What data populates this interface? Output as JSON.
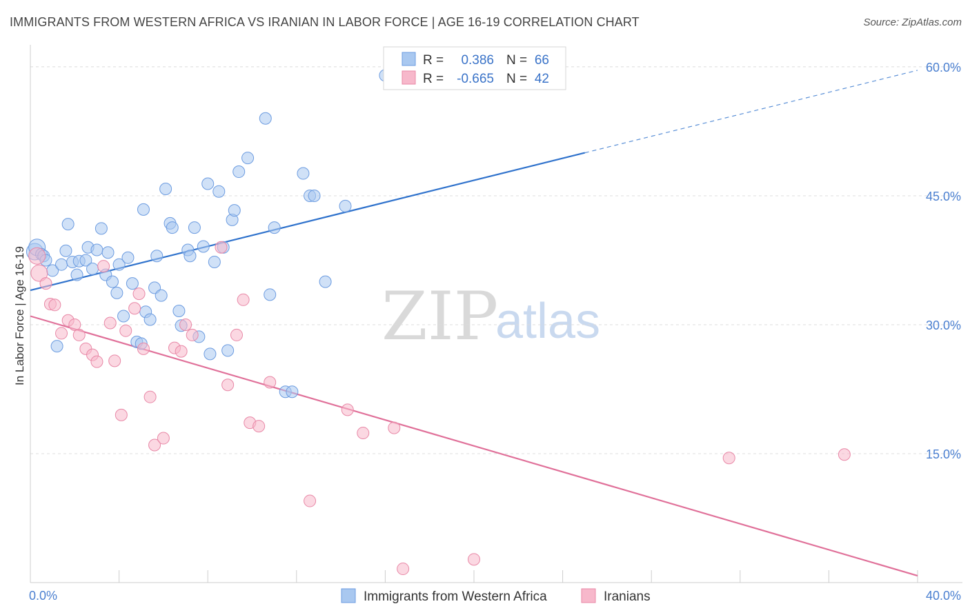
{
  "title": "IMMIGRANTS FROM WESTERN AFRICA VS IRANIAN IN LABOR FORCE | AGE 16-19 CORRELATION CHART",
  "source": "Source: ZipAtlas.com",
  "watermark": {
    "zip": "ZIP",
    "atlas": "atlas"
  },
  "legend": {
    "r_label": "R =",
    "n_label": "N =",
    "rows": [
      {
        "r": "0.386",
        "n": "66",
        "color": "#a9c8f0",
        "stroke": "#6b9be0"
      },
      {
        "r": "-0.665",
        "n": "42",
        "color": "#f7b8cb",
        "stroke": "#e887a6"
      }
    ]
  },
  "chart_data": {
    "type": "scatter",
    "xlabel": "",
    "ylabel": "In Labor Force | Age 16-19",
    "xlim": [
      0,
      40
    ],
    "ylim": [
      0,
      62
    ],
    "x_tick_labels": [
      {
        "v": 0,
        "label": "0.0%"
      },
      {
        "v": 40,
        "label": "40.0%"
      }
    ],
    "y_tick_labels": [
      {
        "v": 15,
        "label": "15.0%"
      },
      {
        "v": 30,
        "label": "30.0%"
      },
      {
        "v": 45,
        "label": "45.0%"
      },
      {
        "v": 60,
        "label": "60.0%"
      }
    ],
    "grid": "horizontal dashed",
    "legend_position": "bottom",
    "series": [
      {
        "name": "Immigrants from Western Africa",
        "color": "#a9c8f0",
        "stroke": "#6b9be0",
        "trend": {
          "x0": 0,
          "y0": 34.0,
          "x1": 25,
          "y1": 50.0,
          "dash_to_x": 40,
          "dash_to_y": 59.6,
          "color": "#2f72cc"
        },
        "points": [
          [
            0.2,
            38.5
          ],
          [
            0.3,
            39.0
          ],
          [
            0.5,
            38.2
          ],
          [
            0.6,
            38.0
          ],
          [
            0.7,
            37.5
          ],
          [
            1.0,
            36.3
          ],
          [
            1.2,
            27.5
          ],
          [
            1.4,
            37.0
          ],
          [
            1.6,
            38.6
          ],
          [
            1.7,
            41.7
          ],
          [
            1.9,
            37.3
          ],
          [
            2.1,
            35.8
          ],
          [
            2.2,
            37.4
          ],
          [
            2.5,
            37.5
          ],
          [
            2.6,
            39.0
          ],
          [
            2.8,
            36.5
          ],
          [
            3.0,
            38.7
          ],
          [
            3.2,
            41.2
          ],
          [
            3.4,
            35.8
          ],
          [
            3.5,
            38.4
          ],
          [
            3.7,
            35.0
          ],
          [
            3.9,
            33.7
          ],
          [
            4.0,
            37.0
          ],
          [
            4.2,
            31.0
          ],
          [
            4.4,
            37.8
          ],
          [
            4.6,
            34.8
          ],
          [
            4.8,
            28.0
          ],
          [
            5.0,
            27.8
          ],
          [
            5.1,
            43.4
          ],
          [
            5.2,
            31.5
          ],
          [
            5.4,
            30.6
          ],
          [
            5.6,
            34.3
          ],
          [
            5.7,
            38.0
          ],
          [
            5.9,
            33.4
          ],
          [
            6.1,
            45.8
          ],
          [
            6.3,
            41.8
          ],
          [
            6.4,
            41.3
          ],
          [
            6.7,
            31.6
          ],
          [
            6.8,
            29.9
          ],
          [
            7.1,
            38.7
          ],
          [
            7.2,
            38.0
          ],
          [
            7.4,
            41.3
          ],
          [
            7.6,
            28.6
          ],
          [
            7.8,
            39.1
          ],
          [
            8.0,
            46.4
          ],
          [
            8.1,
            26.6
          ],
          [
            8.3,
            37.3
          ],
          [
            8.5,
            45.5
          ],
          [
            8.7,
            39.0
          ],
          [
            8.9,
            27.0
          ],
          [
            9.1,
            42.2
          ],
          [
            9.2,
            43.3
          ],
          [
            9.4,
            47.8
          ],
          [
            9.8,
            49.4
          ],
          [
            10.6,
            54.0
          ],
          [
            10.8,
            33.5
          ],
          [
            11.0,
            41.3
          ],
          [
            11.5,
            22.2
          ],
          [
            11.8,
            22.2
          ],
          [
            12.3,
            47.6
          ],
          [
            12.6,
            45.0
          ],
          [
            12.8,
            45.0
          ],
          [
            13.3,
            35.0
          ],
          [
            14.2,
            43.8
          ],
          [
            16.0,
            59.0
          ],
          [
            16.4,
            58.7
          ]
        ]
      },
      {
        "name": "Iranians",
        "color": "#f7b8cb",
        "stroke": "#e887a6",
        "trend": {
          "x0": 0,
          "y0": 31.0,
          "x1": 40,
          "y1": 0.8,
          "color": "#e07099"
        },
        "points": [
          [
            0.3,
            38.0
          ],
          [
            0.4,
            36.0
          ],
          [
            0.7,
            34.8
          ],
          [
            0.9,
            32.4
          ],
          [
            1.1,
            32.3
          ],
          [
            1.4,
            29.0
          ],
          [
            1.7,
            30.5
          ],
          [
            2.0,
            30.0
          ],
          [
            2.2,
            28.8
          ],
          [
            2.5,
            27.2
          ],
          [
            2.8,
            26.5
          ],
          [
            3.0,
            25.7
          ],
          [
            3.3,
            36.8
          ],
          [
            3.6,
            30.2
          ],
          [
            3.8,
            25.8
          ],
          [
            4.1,
            19.5
          ],
          [
            4.3,
            29.3
          ],
          [
            4.7,
            31.9
          ],
          [
            4.9,
            33.6
          ],
          [
            5.1,
            27.2
          ],
          [
            5.4,
            21.6
          ],
          [
            5.6,
            16.0
          ],
          [
            6.0,
            16.8
          ],
          [
            6.5,
            27.3
          ],
          [
            6.8,
            26.9
          ],
          [
            7.0,
            30.0
          ],
          [
            7.3,
            28.8
          ],
          [
            8.6,
            39.0
          ],
          [
            8.9,
            23.0
          ],
          [
            9.3,
            28.8
          ],
          [
            9.6,
            32.9
          ],
          [
            9.9,
            18.6
          ],
          [
            10.3,
            18.2
          ],
          [
            10.8,
            23.3
          ],
          [
            12.6,
            9.5
          ],
          [
            14.3,
            20.1
          ],
          [
            15.0,
            17.4
          ],
          [
            16.4,
            18.0
          ],
          [
            16.8,
            1.6
          ],
          [
            20.0,
            2.7
          ],
          [
            31.5,
            14.5
          ],
          [
            36.7,
            14.9
          ]
        ]
      }
    ]
  }
}
